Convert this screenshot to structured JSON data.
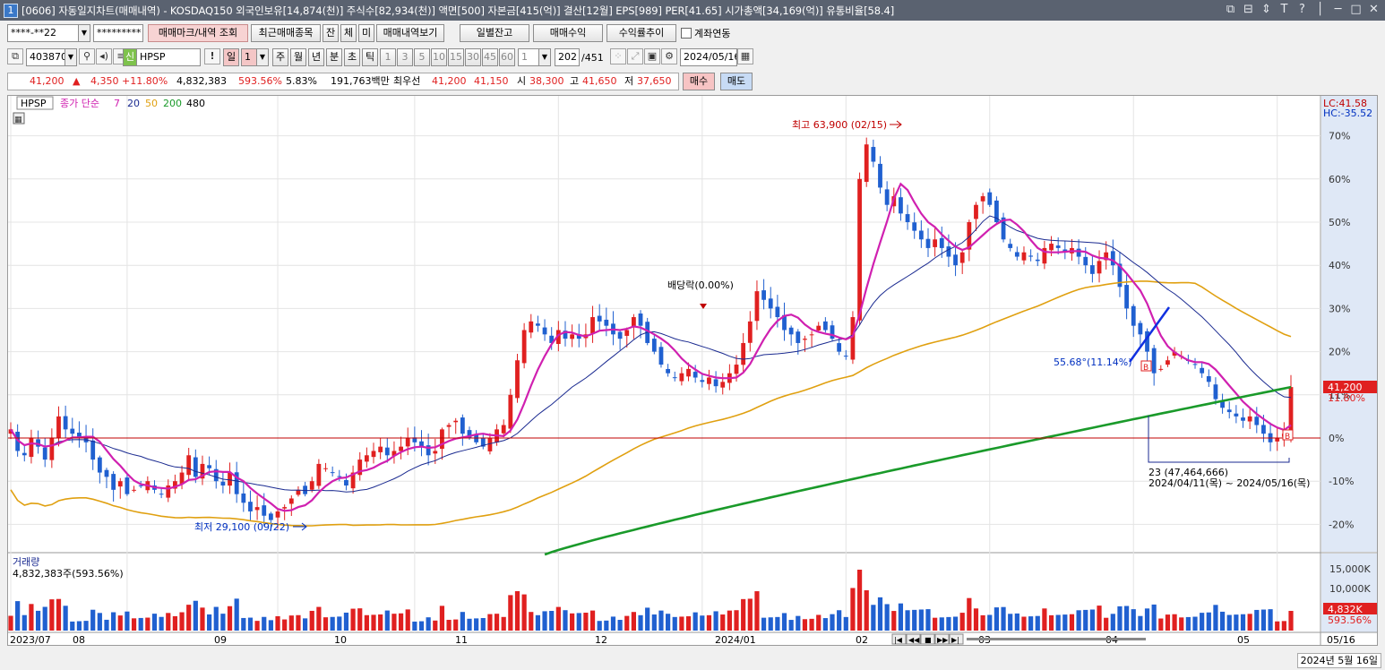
{
  "window": {
    "number": "1",
    "title": "[0606] 자동일지차트(매매내역) - KOSDAQ150 외국인보유[14,874(천)] 주식수[82,934(천)] 액면[500] 자본금[415(억)] 결산[12월] EPS[989] PER[41.65] 시가총액[34,169(억)] 유통비율[58.4]",
    "controls": [
      "⧉",
      "⊟",
      "⇕",
      "T",
      "?",
      "│",
      "─",
      "□",
      "✕"
    ]
  },
  "toolbar1": {
    "account": "****-**22",
    "password": "*********",
    "query_button": "매매마크/내역 조회",
    "recent_button": "최근매매종목",
    "btn_jan": "잔",
    "btn_che": "체",
    "btn_mi": "미",
    "history_button": "매매내역보기",
    "daily_balance": "일별잔고",
    "trade_profit": "매매수익",
    "return_trend": "수익률추이",
    "account_link_label": "계좌연동"
  },
  "toolbar2": {
    "code": "403870",
    "stock_badge": "신",
    "stock_name": "HPSP",
    "periods": [
      "일",
      "1",
      "주",
      "월",
      "년",
      "분",
      "초",
      "틱"
    ],
    "minutes": [
      "1",
      "3",
      "5",
      "10",
      "15",
      "30",
      "45",
      "60"
    ],
    "count_select": "1",
    "page_count": "202",
    "page_total": "/451",
    "date": "2024/05/16"
  },
  "quote": {
    "price": "41,200",
    "change": "4,350",
    "change_pct": "+11.80%",
    "volume": "4,832,383",
    "vol_ratio": "593.56%",
    "turnover": "5.83%",
    "amount": "191,763백만",
    "best_label": "최우선",
    "ask": "41,200",
    "bid": "41,150",
    "open_label": "시",
    "open": "38,300",
    "high_label": "고",
    "high": "41,650",
    "low_label": "저",
    "low": "37,650",
    "buy_button": "매수",
    "sell_button": "매도"
  },
  "colors": {
    "up": "#e02020",
    "down": "#2060d0",
    "ma7": "#d020b0",
    "ma20": "#1a2a90",
    "ma50": "#e0a010",
    "ma200": "#1a9a2a",
    "ma480": "#000000"
  },
  "price_chart": {
    "ticker": "HPSP",
    "ma_label": "종가 단순",
    "ma_periods": [
      "7",
      "20",
      "50",
      "200",
      "480"
    ],
    "lc": "LC:41.58",
    "hc": "HC:-35.52",
    "y_ticks": [
      "70%",
      "60%",
      "50%",
      "40%",
      "30%",
      "20%",
      "11%",
      "0%",
      "-10%",
      "-20%"
    ],
    "last_price_label": "41,200",
    "last_pct_label": "11.80%",
    "annotations": {
      "high": "최고 63,900 (02/15)",
      "low": "최저 29,100 (09/22)",
      "dividend": "배당락(0.00%)",
      "trend": "55.68°(11.14%)",
      "range_count": "23 (47,464,666)",
      "range_dates": "2024/04/11(목) ~ 2024/05/16(목)",
      "buy_marker": "B"
    }
  },
  "volume_chart": {
    "label": "거래량",
    "value": "4,832,383주(593.56%)",
    "y_ticks": [
      "15,000K",
      "10,000K"
    ],
    "last_label": "4,832K",
    "last_pct": "593.56%"
  },
  "x_axis": {
    "labels": [
      "2023/07",
      "08",
      "09",
      "10",
      "11",
      "12",
      "2024/01",
      "02",
      "03",
      "04",
      "05",
      "05/16"
    ]
  },
  "nav": {
    "buttons": [
      "|◀",
      "◀◀",
      "■",
      "▶▶",
      "▶|"
    ]
  },
  "status": {
    "date": "2024년 5월 16일"
  },
  "chart_data": {
    "type": "candlestick",
    "price_unit": "percent change from reference (0% = about 36,850 won)",
    "ylim": [
      -27,
      77
    ],
    "series": [
      {
        "name": "종가 단순 7"
      },
      {
        "name": "20"
      },
      {
        "name": "50"
      },
      {
        "name": "200"
      }
    ],
    "x_range": [
      "2023/07",
      "2024/05/16"
    ],
    "closes_pct": [
      2,
      -3,
      -4,
      0,
      -2,
      -5,
      0,
      5,
      2,
      1,
      0,
      -1,
      -5,
      -8,
      -9,
      -12,
      -10,
      -13,
      -12,
      -11,
      -10,
      -12,
      -13,
      -11,
      -10,
      -8,
      -4,
      -9,
      -6,
      -7,
      -10,
      -11,
      -8,
      -13,
      -15,
      -17,
      -16,
      -18,
      -19,
      -17,
      -16,
      -14,
      -12,
      -13,
      -10,
      -6,
      -7,
      -8,
      -9,
      -11,
      -8,
      -5,
      -4,
      -3,
      -2,
      -4,
      -3,
      -2,
      0,
      -1,
      -2,
      -4,
      -3,
      2,
      3,
      4,
      1,
      0,
      -1,
      -2,
      0,
      2,
      3,
      10,
      18,
      25,
      27,
      26,
      24,
      22,
      25,
      23,
      24,
      23,
      24,
      28,
      27,
      26,
      24,
      23,
      25,
      28,
      26,
      22,
      20,
      17,
      15,
      14,
      15,
      16,
      14,
      13,
      14,
      12,
      13,
      15,
      17,
      22,
      27,
      34,
      32,
      30,
      28,
      25,
      24,
      22,
      23,
      24,
      26,
      25,
      23,
      20,
      19,
      28,
      60,
      68,
      64,
      58,
      54,
      56,
      52,
      50,
      48,
      46,
      44,
      46,
      44,
      42,
      40,
      43,
      50,
      54,
      56,
      54,
      50,
      46,
      44,
      42,
      43,
      42,
      41,
      44,
      45,
      44,
      43,
      44,
      42,
      40,
      38,
      41,
      43,
      40,
      35,
      30,
      26,
      24,
      20,
      15,
      16,
      18,
      20,
      19,
      18,
      17,
      15,
      13,
      9,
      7,
      6,
      5,
      4,
      5,
      3,
      1,
      -1,
      0,
      1,
      11.8
    ],
    "ma200_pct": [
      -27,
      11.8
    ]
  }
}
